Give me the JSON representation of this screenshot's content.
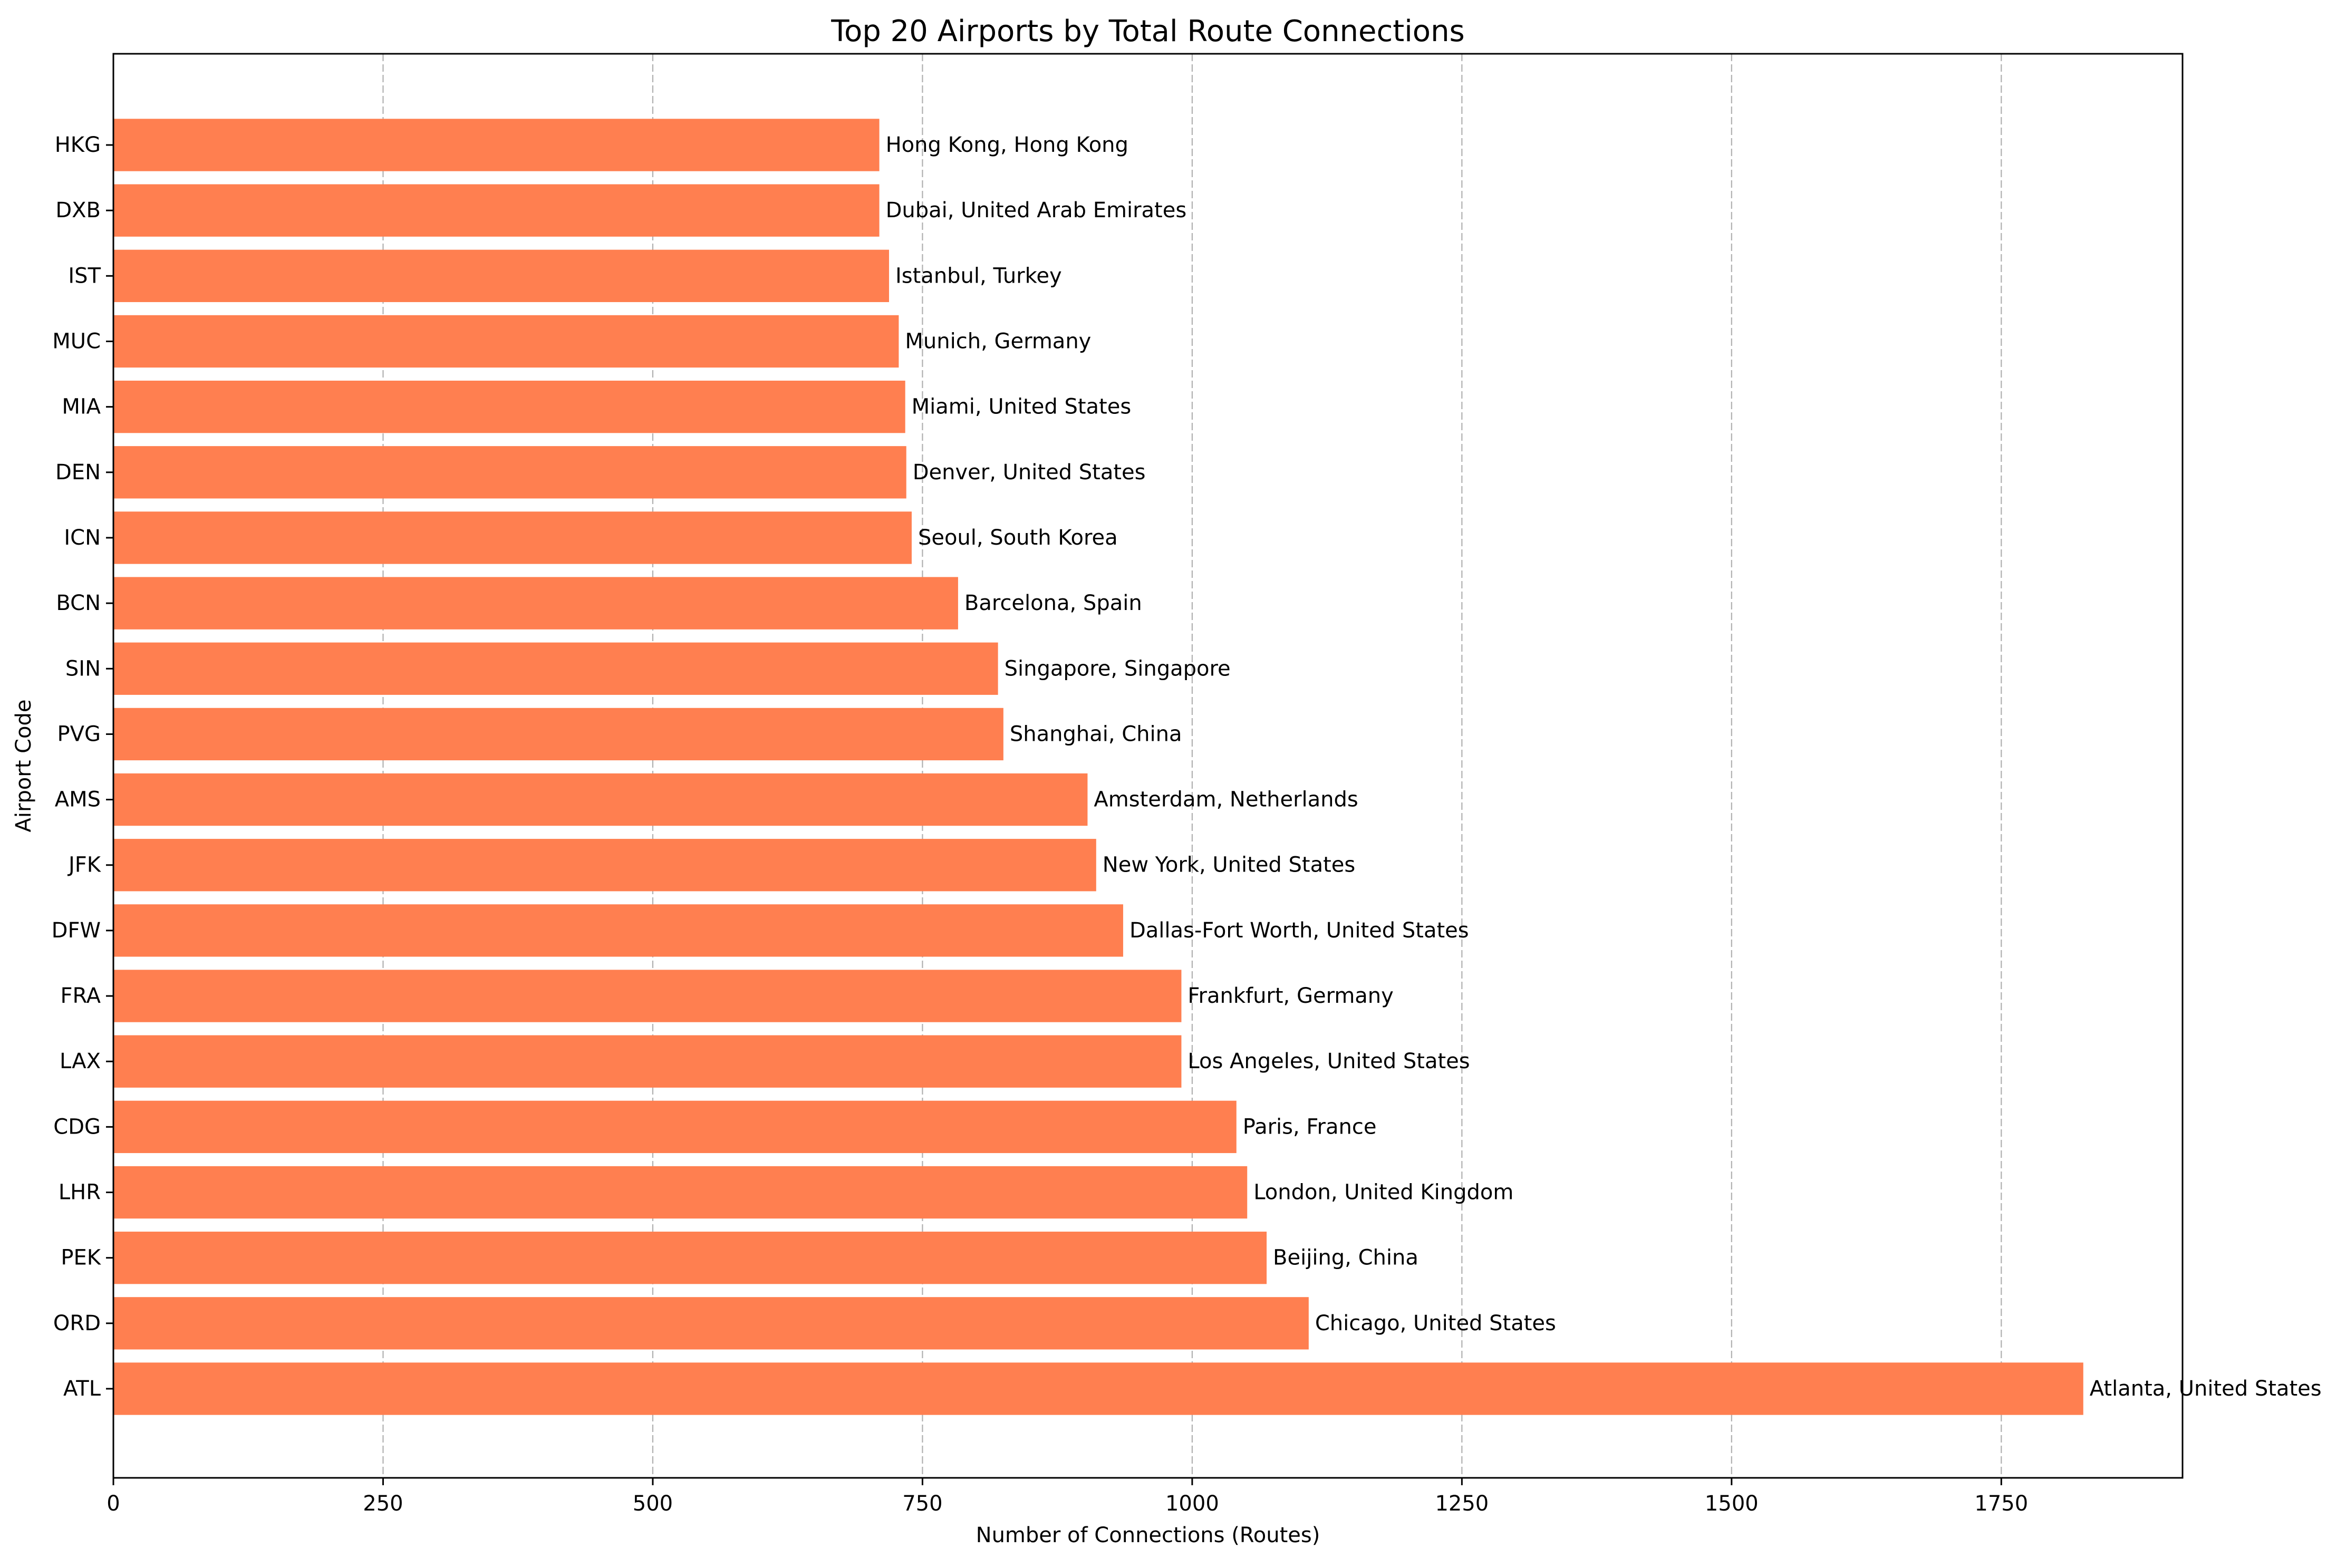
{
  "chart_data": {
    "type": "bar",
    "orientation": "horizontal",
    "title": "Top 20 Airports by Total Route Connections",
    "xlabel": "Number of Connections (Routes)",
    "ylabel": "Airport Code",
    "xlim": [
      0,
      1918
    ],
    "xticks": [
      0,
      250,
      500,
      750,
      1000,
      1250,
      1500,
      1750
    ],
    "grid": "x-dashed",
    "bar_color": "#FF7F50",
    "categories": [
      "ATL",
      "ORD",
      "PEK",
      "LHR",
      "CDG",
      "LAX",
      "FRA",
      "DFW",
      "JFK",
      "AMS",
      "PVG",
      "SIN",
      "BCN",
      "ICN",
      "DEN",
      "MIA",
      "MUC",
      "IST",
      "DXB",
      "HKG"
    ],
    "values": [
      1826,
      1108,
      1069,
      1051,
      1041,
      990,
      990,
      936,
      911,
      903,
      825,
      820,
      783,
      740,
      735,
      734,
      728,
      719,
      710,
      710
    ],
    "labels": [
      "Atlanta, United States",
      "Chicago, United States",
      "Beijing, China",
      "London, United Kingdom",
      "Paris, France",
      "Los Angeles, United States",
      "Frankfurt, Germany",
      "Dallas-Fort Worth, United States",
      "New York, United States",
      "Amsterdam, Netherlands",
      "Shanghai, China",
      "Singapore, Singapore",
      "Barcelona, Spain",
      "Seoul, South Korea",
      "Denver, United States",
      "Miami, United States",
      "Munich, Germany",
      "Istanbul, Turkey",
      "Dubai, United Arab Emirates",
      "Hong Kong, Hong Kong"
    ]
  }
}
